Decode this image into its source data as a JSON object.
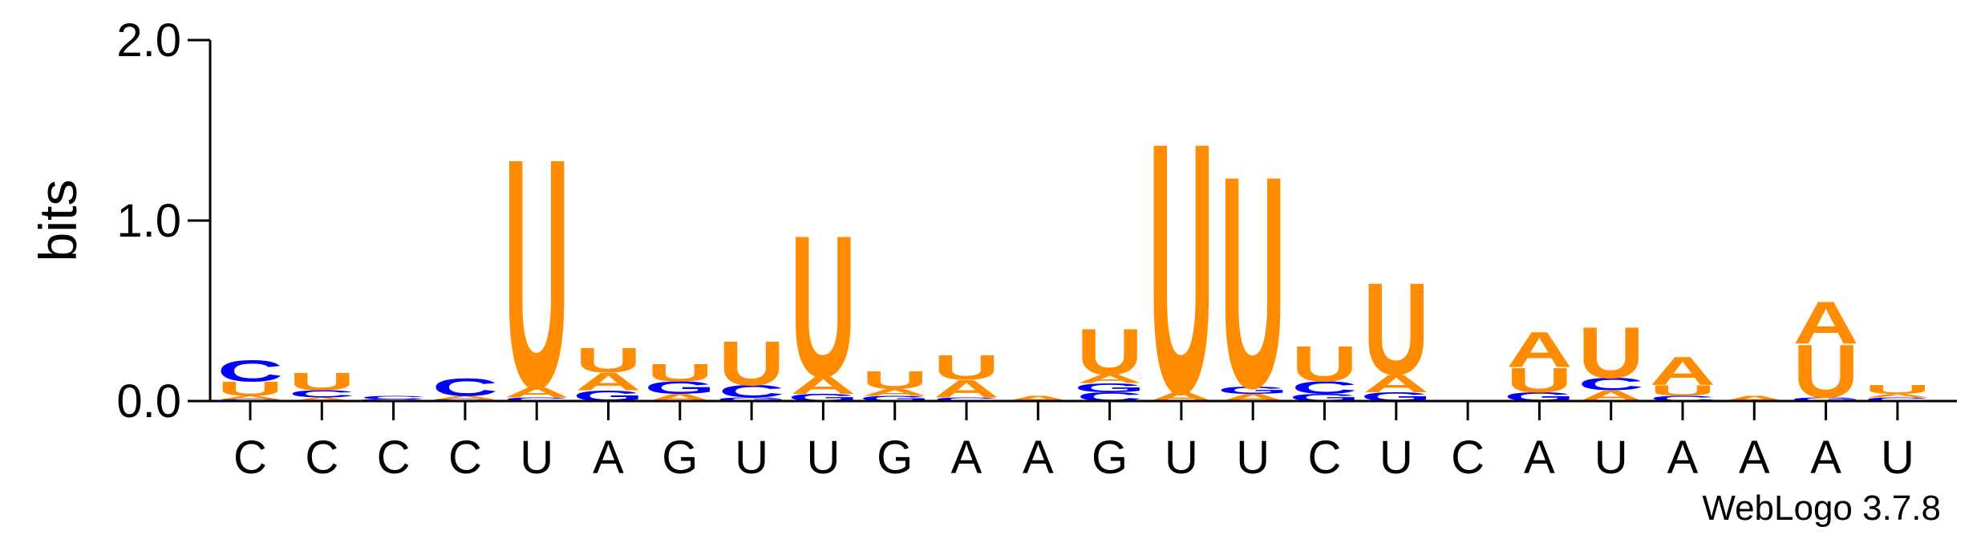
{
  "chart_data": {
    "type": "sequence-logo",
    "ylabel": "bits",
    "ylim": [
      0,
      2.0
    ],
    "yticks": [
      {
        "value": 0.0,
        "label": "0.0"
      },
      {
        "value": 1.0,
        "label": "1.0"
      },
      {
        "value": 2.0,
        "label": "2.0"
      }
    ],
    "colors": {
      "U": "#FF8C00",
      "A": "#FF8C00",
      "C": "#0000FF",
      "G": "#0000FF"
    },
    "positions": [
      {
        "label": "C",
        "stack": [
          {
            "letter": "C",
            "bits": 0.01
          },
          {
            "letter": "A",
            "bits": 0.02
          },
          {
            "letter": "U",
            "bits": 0.08
          },
          {
            "letter": "C",
            "bits": 0.12
          }
        ]
      },
      {
        "label": "C",
        "stack": [
          {
            "letter": "A",
            "bits": 0.02
          },
          {
            "letter": "C",
            "bits": 0.04
          },
          {
            "letter": "U",
            "bits": 0.1
          }
        ]
      },
      {
        "label": "C",
        "stack": [
          {
            "letter": "G",
            "bits": 0.01
          },
          {
            "letter": "C",
            "bits": 0.02
          }
        ]
      },
      {
        "label": "C",
        "stack": [
          {
            "letter": "G",
            "bits": 0.01
          },
          {
            "letter": "A",
            "bits": 0.02
          },
          {
            "letter": "C",
            "bits": 0.1
          }
        ]
      },
      {
        "label": "U",
        "stack": [
          {
            "letter": "C",
            "bits": 0.02
          },
          {
            "letter": "A",
            "bits": 0.06
          },
          {
            "letter": "U",
            "bits": 1.3
          }
        ]
      },
      {
        "label": "A",
        "stack": [
          {
            "letter": "G",
            "bits": 0.06
          },
          {
            "letter": "A",
            "bits": 0.1
          },
          {
            "letter": "U",
            "bits": 0.14
          }
        ]
      },
      {
        "label": "G",
        "stack": [
          {
            "letter": "A",
            "bits": 0.04
          },
          {
            "letter": "G",
            "bits": 0.07
          },
          {
            "letter": "U",
            "bits": 0.1
          }
        ]
      },
      {
        "label": "U",
        "stack": [
          {
            "letter": "G",
            "bits": 0.02
          },
          {
            "letter": "C",
            "bits": 0.07
          },
          {
            "letter": "U",
            "bits": 0.25
          }
        ]
      },
      {
        "label": "U",
        "stack": [
          {
            "letter": "G",
            "bits": 0.04
          },
          {
            "letter": "A",
            "bits": 0.1
          },
          {
            "letter": "U",
            "bits": 0.8
          }
        ]
      },
      {
        "label": "G",
        "stack": [
          {
            "letter": "G",
            "bits": 0.03
          },
          {
            "letter": "A",
            "bits": 0.04
          },
          {
            "letter": "U",
            "bits": 0.1
          }
        ]
      },
      {
        "label": "A",
        "stack": [
          {
            "letter": "C",
            "bits": 0.02
          },
          {
            "letter": "A",
            "bits": 0.1
          },
          {
            "letter": "U",
            "bits": 0.14
          }
        ]
      },
      {
        "label": "A",
        "stack": [
          {
            "letter": "A",
            "bits": 0.03
          }
        ]
      },
      {
        "label": "G",
        "stack": [
          {
            "letter": "C",
            "bits": 0.05
          },
          {
            "letter": "G",
            "bits": 0.05
          },
          {
            "letter": "A",
            "bits": 0.05
          },
          {
            "letter": "U",
            "bits": 0.26
          }
        ]
      },
      {
        "label": "U",
        "stack": [
          {
            "letter": "A",
            "bits": 0.05
          },
          {
            "letter": "U",
            "bits": 1.42
          }
        ]
      },
      {
        "label": "U",
        "stack": [
          {
            "letter": "A",
            "bits": 0.04
          },
          {
            "letter": "G",
            "bits": 0.04
          },
          {
            "letter": "U",
            "bits": 1.2
          }
        ]
      },
      {
        "label": "C",
        "stack": [
          {
            "letter": "G",
            "bits": 0.04
          },
          {
            "letter": "C",
            "bits": 0.07
          },
          {
            "letter": "U",
            "bits": 0.2
          }
        ]
      },
      {
        "label": "U",
        "stack": [
          {
            "letter": "G",
            "bits": 0.05
          },
          {
            "letter": "A",
            "bits": 0.1
          },
          {
            "letter": "U",
            "bits": 0.52
          }
        ]
      },
      {
        "label": "C",
        "stack": []
      },
      {
        "label": "A",
        "stack": [
          {
            "letter": "G",
            "bits": 0.05
          },
          {
            "letter": "U",
            "bits": 0.14
          },
          {
            "letter": "A",
            "bits": 0.2
          }
        ]
      },
      {
        "label": "U",
        "stack": [
          {
            "letter": "A",
            "bits": 0.06
          },
          {
            "letter": "C",
            "bits": 0.07
          },
          {
            "letter": "U",
            "bits": 0.29
          }
        ]
      },
      {
        "label": "A",
        "stack": [
          {
            "letter": "C",
            "bits": 0.03
          },
          {
            "letter": "U",
            "bits": 0.06
          },
          {
            "letter": "A",
            "bits": 0.16
          }
        ]
      },
      {
        "label": "A",
        "stack": [
          {
            "letter": "A",
            "bits": 0.03
          }
        ]
      },
      {
        "label": "A",
        "stack": [
          {
            "letter": "G",
            "bits": 0.02
          },
          {
            "letter": "U",
            "bits": 0.3
          },
          {
            "letter": "A",
            "bits": 0.24
          }
        ]
      },
      {
        "label": "U",
        "stack": [
          {
            "letter": "C",
            "bits": 0.02
          },
          {
            "letter": "A",
            "bits": 0.02
          },
          {
            "letter": "U",
            "bits": 0.05
          }
        ]
      }
    ]
  },
  "footer": {
    "text": "WebLogo 3.7.8"
  }
}
